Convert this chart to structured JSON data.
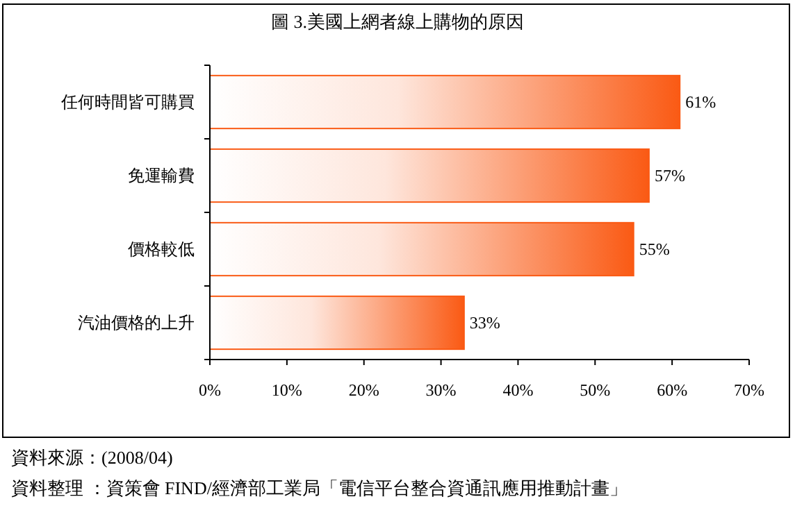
{
  "chart_data": {
    "type": "bar",
    "orientation": "horizontal",
    "title": "圖 3.美國上網者線上購物的原因",
    "categories": [
      "任何時間皆可購買",
      "免運輸費",
      "價格較低",
      "汽油價格的上升"
    ],
    "values": [
      61,
      57,
      55,
      33
    ],
    "value_labels": [
      "61%",
      "57%",
      "55%",
      "33%"
    ],
    "color": "#fa5a14",
    "xlim": [
      0,
      70
    ],
    "xticks": [
      {
        "value": 0,
        "label": "0%"
      },
      {
        "value": 10,
        "label": "10%"
      },
      {
        "value": 20,
        "label": "20%"
      },
      {
        "value": 30,
        "label": "30%"
      },
      {
        "value": 40,
        "label": "40%"
      },
      {
        "value": 50,
        "label": "50%"
      },
      {
        "value": 60,
        "label": "60%"
      },
      {
        "value": 70,
        "label": "70%"
      }
    ],
    "grid": false,
    "annotations": [
      "資料來源：(2008/04)",
      "資料整理 ：資策會 FIND/經濟部工業局「電信平台整合資通訊應用推動計畫」"
    ]
  }
}
